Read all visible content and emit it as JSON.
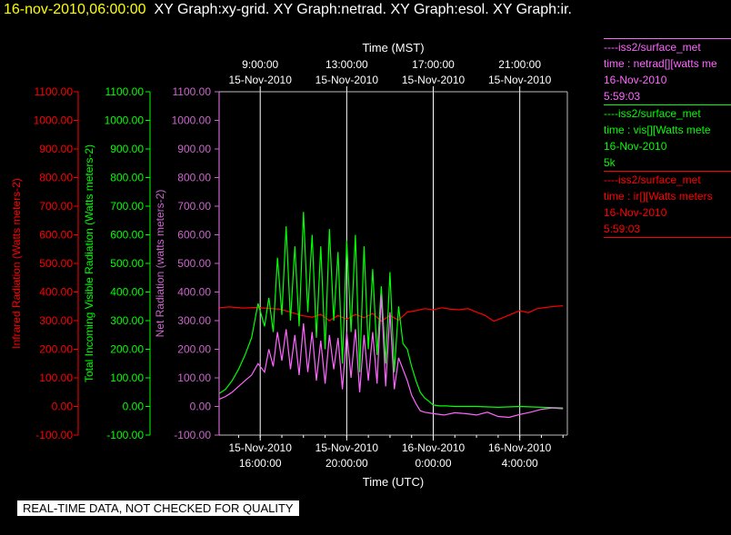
{
  "header": {
    "timestamp": "16-nov-2010,06:00:00",
    "graphs": "XY Graph:xy-grid.  XY Graph:netrad.  XY Graph:esol.  XY Graph:ir."
  },
  "legend": [
    {
      "line1": "----iss2/surface_met",
      "line2": "time : netrad[][watts me",
      "line3": "16-Nov-2010",
      "line4": "5:59:03",
      "color": "#ff66ff"
    },
    {
      "line1": "----iss2/surface_met",
      "line2": "time : vis[][Watts mete",
      "line3": "16-Nov-2010",
      "line4": "5k",
      "color": "#00ff00"
    },
    {
      "line1": "----iss2/surface_met",
      "line2": "time : ir[][Watts meters",
      "line3": "16-Nov-2010",
      "line4": "5:59:03",
      "color": "#ff0000"
    }
  ],
  "banner": "REAL-TIME DATA, NOT CHECKED FOR QUALITY",
  "chart_data": {
    "type": "line",
    "top_axis": {
      "title": "Time (MST)",
      "ticks": [
        {
          "x": 9,
          "time": "9:00:00",
          "date": "15-Nov-2010"
        },
        {
          "x": 13,
          "time": "13:00:00",
          "date": "15-Nov-2010"
        },
        {
          "x": 17,
          "time": "17:00:00",
          "date": "15-Nov-2010"
        },
        {
          "x": 21,
          "time": "21:00:00",
          "date": "15-Nov-2010"
        }
      ]
    },
    "bottom_axis": {
      "title": "Time (UTC)",
      "ticks": [
        {
          "x": 16,
          "date": "15-Nov-2010",
          "time": "16:00:00"
        },
        {
          "x": 20,
          "date": "15-Nov-2010",
          "time": "20:00:00"
        },
        {
          "x": 24,
          "date": "16-Nov-2010",
          "time": "0:00:00"
        },
        {
          "x": 28,
          "date": "16-Nov-2010",
          "time": "4:00:00"
        }
      ]
    },
    "x_unit_note": "hours after 15-Nov-2010 00:00 UTC",
    "xlim": [
      14.1,
      30.2
    ],
    "ylim": [
      -100,
      1100
    ],
    "y_ticks": [
      "-100.00",
      "0.00",
      "100.00",
      "200.00",
      "300.00",
      "400.00",
      "500.00",
      "600.00",
      "700.00",
      "800.00",
      "900.00",
      "1000.00",
      "1100.00"
    ],
    "y_tick_values": [
      -100,
      0,
      100,
      200,
      300,
      400,
      500,
      600,
      700,
      800,
      900,
      1000,
      1100
    ],
    "y_axes": [
      {
        "label": "Infrared Radiation (Watts meters-2)",
        "color": "#ff0000"
      },
      {
        "label": "Total Incoming Visible Radiation (Watts meters-2)",
        "color": "#00ff00"
      },
      {
        "label": "Net Radiation (watts meters-2)",
        "color": "#cc66cc"
      }
    ],
    "grid_x": [
      16,
      20,
      24,
      28
    ],
    "series": [
      {
        "color": "#ff0000",
        "x": [
          14.1,
          14.6,
          15.2,
          15.8,
          16.4,
          16.9,
          17.4,
          17.9,
          18.4,
          18.8,
          19.2,
          19.6,
          20.0,
          20.4,
          20.8,
          21.2,
          21.6,
          22.0,
          22.4,
          22.8,
          23.2,
          23.6,
          24.0,
          24.4,
          24.8,
          25.2,
          25.6,
          26.0,
          26.4,
          26.8,
          27.2,
          27.6,
          28.0,
          28.4,
          28.8,
          29.2,
          29.6,
          30.0
        ],
        "y": [
          345,
          348,
          344,
          346,
          343,
          340,
          330,
          318,
          312,
          322,
          300,
          318,
          305,
          322,
          310,
          325,
          298,
          318,
          302,
          330,
          335,
          342,
          338,
          345,
          340,
          338,
          342,
          330,
          318,
          298,
          310,
          322,
          335,
          328,
          342,
          346,
          350,
          352
        ]
      },
      {
        "color": "#00ff00",
        "x": [
          14.1,
          14.4,
          14.7,
          15.0,
          15.3,
          15.6,
          15.9,
          16.2,
          16.4,
          16.6,
          16.8,
          17.0,
          17.2,
          17.4,
          17.6,
          17.8,
          18.0,
          18.2,
          18.4,
          18.6,
          18.8,
          19.0,
          19.2,
          19.4,
          19.6,
          19.8,
          20.0,
          20.2,
          20.4,
          20.6,
          20.8,
          21.0,
          21.2,
          21.4,
          21.6,
          21.8,
          22.0,
          22.2,
          22.4,
          22.6,
          22.8,
          23.0,
          23.2,
          23.4,
          23.6,
          23.8,
          24.0,
          24.3,
          24.6,
          25.0,
          26.0,
          27.0,
          28.0,
          29.0,
          30.0
        ],
        "y": [
          45,
          60,
          90,
          130,
          180,
          240,
          360,
          280,
          380,
          260,
          520,
          320,
          630,
          300,
          560,
          280,
          680,
          330,
          600,
          240,
          560,
          200,
          620,
          300,
          540,
          150,
          580,
          260,
          600,
          120,
          560,
          200,
          480,
          180,
          420,
          150,
          470,
          120,
          350,
          220,
          200,
          140,
          90,
          50,
          30,
          18,
          5,
          2,
          2,
          0,
          0,
          -3,
          0,
          -3,
          -5
        ]
      },
      {
        "color": "#ff66ff",
        "x": [
          14.1,
          14.4,
          14.7,
          15.0,
          15.3,
          15.6,
          15.9,
          16.2,
          16.4,
          16.6,
          16.8,
          17.0,
          17.2,
          17.4,
          17.6,
          17.8,
          18.0,
          18.2,
          18.4,
          18.6,
          18.8,
          19.0,
          19.2,
          19.4,
          19.6,
          19.8,
          20.0,
          20.2,
          20.4,
          20.6,
          20.8,
          21.0,
          21.2,
          21.4,
          21.6,
          21.8,
          22.0,
          22.2,
          22.4,
          22.6,
          22.8,
          23.0,
          23.2,
          23.4,
          23.6,
          24.0,
          24.5,
          25.0,
          25.5,
          26.0,
          26.5,
          27.0,
          27.5,
          28.0,
          28.5,
          29.0,
          29.5,
          30.0
        ],
        "y": [
          25,
          35,
          50,
          70,
          90,
          110,
          150,
          120,
          200,
          140,
          260,
          160,
          270,
          130,
          250,
          110,
          290,
          120,
          260,
          90,
          230,
          80,
          250,
          130,
          240,
          60,
          260,
          100,
          270,
          50,
          250,
          90,
          260,
          80,
          390,
          70,
          330,
          60,
          170,
          130,
          90,
          40,
          10,
          -15,
          -20,
          -25,
          -30,
          -22,
          -25,
          -30,
          -20,
          -35,
          -38,
          -28,
          -20,
          -10,
          -5,
          -8
        ]
      }
    ]
  }
}
